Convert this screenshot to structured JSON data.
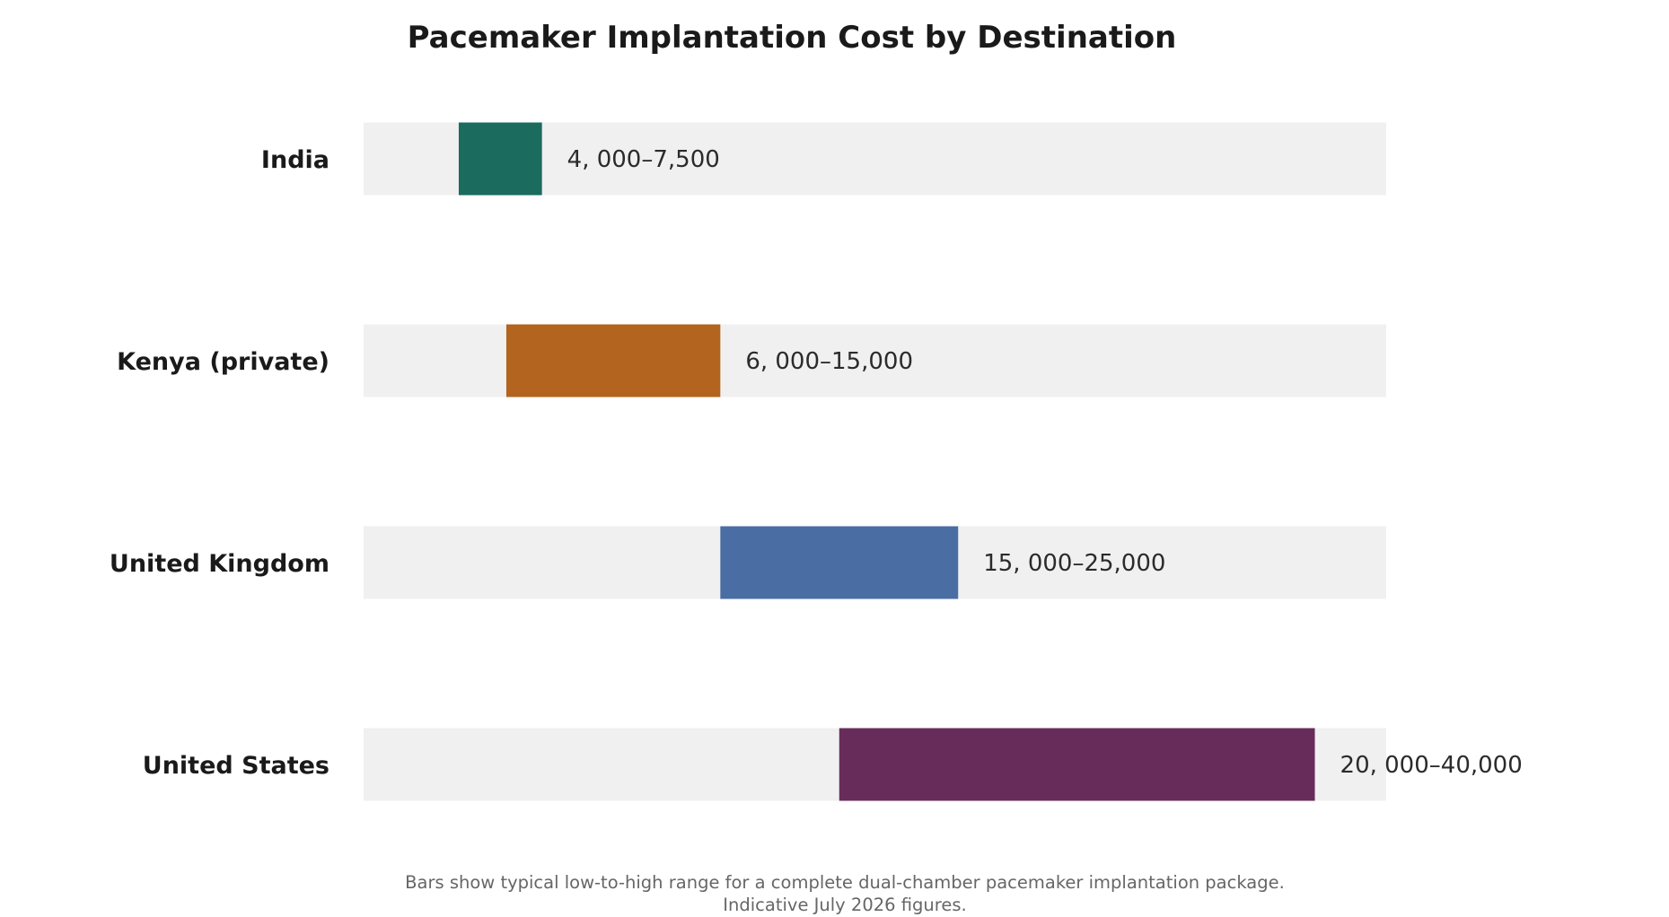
{
  "chart_data": {
    "type": "bar",
    "orientation": "horizontal",
    "style": "floating-range",
    "title": "Pacemaker Implantation Cost by Destination",
    "categories": [
      "India",
      "Kenya (private)",
      "United Kingdom",
      "United States"
    ],
    "ranges": [
      {
        "low": 4000,
        "high": 7500,
        "label": "4, 000–7,500",
        "color": "#1b6b5f"
      },
      {
        "low": 6000,
        "high": 15000,
        "label": "6, 000–15,000",
        "color": "#b3641e"
      },
      {
        "low": 15000,
        "high": 25000,
        "label": "15, 000–25,000",
        "color": "#4a6ea3"
      },
      {
        "low": 20000,
        "high": 40000,
        "label": "20, 000–40,000",
        "color": "#672c5a"
      }
    ],
    "xlim": [
      0,
      43000
    ],
    "track_color": "#f0f0f0",
    "axes_visible": false,
    "grid": false,
    "legend": "none",
    "notes": [
      "Bars show typical low-to-high range for a complete dual-chamber pacemaker implantation package.",
      "Indicative July 2026 figures."
    ]
  }
}
